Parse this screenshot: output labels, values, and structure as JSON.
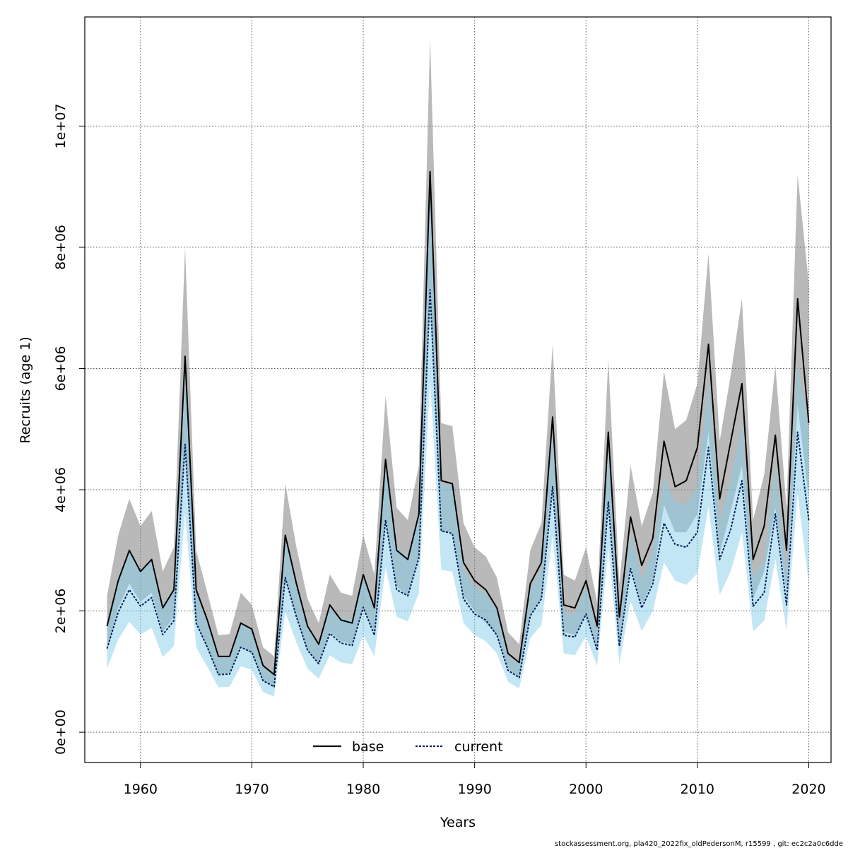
{
  "chart_data": {
    "type": "line",
    "xlabel": "Years",
    "ylabel": "Recruits (age 1)",
    "xlim": [
      1955,
      2022
    ],
    "ylim": [
      -500000,
      11800000
    ],
    "x_ticks": [
      1960,
      1970,
      1980,
      1990,
      2000,
      2010,
      2020
    ],
    "x_tick_labels": [
      "1960",
      "1970",
      "1980",
      "1990",
      "2000",
      "2010",
      "2020"
    ],
    "y_ticks": [
      0,
      2000000,
      4000000,
      6000000,
      8000000,
      10000000
    ],
    "y_tick_labels": [
      "0e+00",
      "2e+06",
      "4e+06",
      "6e+06",
      "8e+06",
      "1e+07"
    ],
    "grid": true,
    "legend_placement": "bottom-center",
    "x": [
      1957,
      1958,
      1959,
      1960,
      1961,
      1962,
      1963,
      1964,
      1965,
      1966,
      1967,
      1968,
      1969,
      1970,
      1971,
      1972,
      1973,
      1974,
      1975,
      1976,
      1977,
      1978,
      1979,
      1980,
      1981,
      1982,
      1983,
      1984,
      1985,
      1986,
      1987,
      1988,
      1989,
      1990,
      1991,
      1992,
      1993,
      1994,
      1995,
      1996,
      1997,
      1998,
      1999,
      2000,
      2001,
      2002,
      2003,
      2004,
      2005,
      2006,
      2007,
      2008,
      2009,
      2010,
      2011,
      2012,
      2013,
      2014,
      2015,
      2016,
      2017,
      2018,
      2019,
      2020
    ],
    "series": [
      {
        "name": "base",
        "color": "#000000",
        "band_color": "#808080",
        "values": [
          1750000,
          2500000,
          3000000,
          2650000,
          2850000,
          2050000,
          2350000,
          6200000,
          2350000,
          1850000,
          1250000,
          1250000,
          1800000,
          1700000,
          1100000,
          950000,
          3250000,
          2450000,
          1750000,
          1450000,
          2100000,
          1850000,
          1800000,
          2600000,
          2050000,
          4500000,
          3000000,
          2850000,
          3600000,
          9250000,
          4150000,
          4100000,
          2800000,
          2500000,
          2350000,
          2050000,
          1300000,
          1150000,
          2450000,
          2800000,
          5200000,
          2100000,
          2050000,
          2500000,
          1750000,
          4950000,
          1900000,
          3550000,
          2750000,
          3200000,
          4800000,
          4050000,
          4150000,
          4700000,
          6400000,
          3850000,
          4800000,
          5750000,
          2850000,
          3400000,
          4900000,
          3000000,
          7150000,
          5100000
        ],
        "lower": [
          1350000,
          2050000,
          2450000,
          2150000,
          2300000,
          1650000,
          1900000,
          4700000,
          1800000,
          1400000,
          950000,
          980000,
          1400000,
          1300000,
          850000,
          750000,
          2550000,
          1900000,
          1350000,
          1150000,
          1650000,
          1500000,
          1450000,
          2050000,
          1650000,
          3500000,
          2400000,
          2250000,
          2900000,
          7300000,
          3300000,
          3300000,
          2250000,
          2000000,
          1800000,
          1600000,
          1050000,
          900000,
          1950000,
          2200000,
          4050000,
          1650000,
          1600000,
          1950000,
          1350000,
          3850000,
          1450000,
          2750000,
          2100000,
          2500000,
          3750000,
          3300000,
          3300000,
          3600000,
          4950000,
          2950000,
          3650000,
          4400000,
          2200000,
          2650000,
          3700000,
          2300000,
          5400000,
          3850000
        ],
        "upper": [
          2250000,
          3250000,
          3850000,
          3400000,
          3650000,
          2650000,
          3050000,
          8000000,
          3000000,
          2300000,
          1600000,
          1620000,
          2300000,
          2100000,
          1400000,
          1250000,
          4100000,
          3050000,
          2200000,
          1800000,
          2600000,
          2300000,
          2250000,
          3250000,
          2600000,
          5550000,
          3700000,
          3500000,
          4400000,
          11450000,
          5100000,
          5050000,
          3450000,
          3050000,
          2900000,
          2550000,
          1650000,
          1450000,
          3000000,
          3450000,
          6400000,
          2600000,
          2500000,
          3050000,
          2150000,
          6150000,
          2450000,
          4400000,
          3400000,
          3950000,
          5950000,
          5000000,
          5150000,
          5750000,
          7900000,
          4800000,
          5900000,
          7150000,
          3500000,
          4250000,
          6050000,
          3700000,
          9200000,
          7400000
        ]
      },
      {
        "name": "current",
        "color": "#00205b",
        "band_color": "#87ceeb",
        "values": [
          1380000,
          1980000,
          2350000,
          2080000,
          2220000,
          1610000,
          1840000,
          4750000,
          1800000,
          1400000,
          950000,
          960000,
          1400000,
          1320000,
          850000,
          750000,
          2550000,
          1900000,
          1350000,
          1130000,
          1630000,
          1470000,
          1430000,
          2060000,
          1600000,
          3500000,
          2350000,
          2250000,
          2880000,
          7300000,
          3320000,
          3280000,
          2200000,
          1950000,
          1850000,
          1600000,
          1020000,
          900000,
          1920000,
          2200000,
          4050000,
          1600000,
          1570000,
          1950000,
          1350000,
          3800000,
          1420000,
          2700000,
          2050000,
          2450000,
          3450000,
          3100000,
          3050000,
          3300000,
          4700000,
          2850000,
          3350000,
          4150000,
          2080000,
          2300000,
          3600000,
          2100000,
          4950000,
          3500000
        ],
        "lower": [
          1050000,
          1530000,
          1820000,
          1610000,
          1720000,
          1240000,
          1420000,
          3620000,
          1400000,
          1080000,
          740000,
          750000,
          1090000,
          1030000,
          660000,
          590000,
          1980000,
          1480000,
          1050000,
          880000,
          1270000,
          1150000,
          1120000,
          1600000,
          1250000,
          2720000,
          1900000,
          1830000,
          2300000,
          5800000,
          2680000,
          2650000,
          1800000,
          1600000,
          1500000,
          1300000,
          830000,
          720000,
          1550000,
          1770000,
          3250000,
          1300000,
          1270000,
          1580000,
          1090000,
          3060000,
          1130000,
          2170000,
          1670000,
          2000000,
          2800000,
          2500000,
          2430000,
          2620000,
          3720000,
          2260000,
          2660000,
          3290000,
          1660000,
          1840000,
          2860000,
          1680000,
          3930000,
          2450000
        ],
        "upper": [
          1800000,
          2560000,
          3020000,
          2680000,
          2860000,
          2080000,
          2380000,
          6200000,
          2320000,
          1820000,
          1230000,
          1240000,
          1800000,
          1700000,
          1100000,
          970000,
          3280000,
          2440000,
          1740000,
          1460000,
          2100000,
          1900000,
          1850000,
          2650000,
          2070000,
          4500000,
          3050000,
          2900000,
          3700000,
          9300000,
          4100000,
          4050000,
          2700000,
          2400000,
          2300000,
          2000000,
          1260000,
          1120000,
          2350000,
          2700000,
          4950000,
          1980000,
          1940000,
          2400000,
          1660000,
          4650000,
          1740000,
          3300000,
          2520000,
          3000000,
          4220000,
          3800000,
          3750000,
          4050000,
          5800000,
          3500000,
          4150000,
          5100000,
          2560000,
          2830000,
          4420000,
          2600000,
          6100000,
          5000000
        ]
      }
    ]
  },
  "legend": {
    "items": [
      {
        "label": "base"
      },
      {
        "label": "current"
      }
    ]
  },
  "footer": {
    "text": "stockassessment.org, pla420_2022fix_oldPedersonM, r15599 , git: ec2c2a0c6dde"
  }
}
